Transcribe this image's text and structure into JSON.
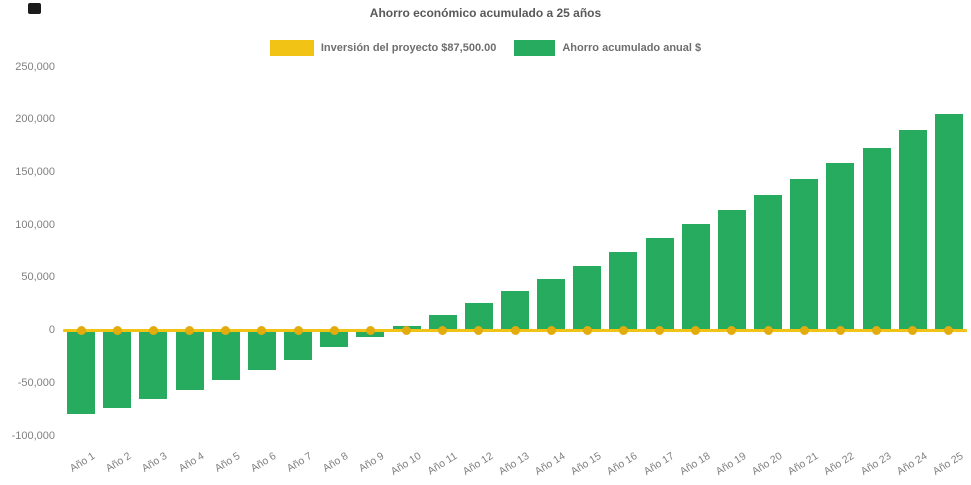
{
  "header": {
    "title": "Ahorro económico acumulado a 25 años"
  },
  "colors": {
    "investment_yellow": "#f0c314",
    "marker_gold": "#e2ab0e",
    "savings_green": "#27ab5f",
    "title_text": "#595959",
    "legend_text": "#6e6e6e",
    "axis_text": "#808080",
    "corner_mark": "#1b1b1b",
    "background": "#ffffff"
  },
  "legend": {
    "items": [
      {
        "label": "Inversión del proyecto $87,500.00",
        "swatch_color": "#f0c314"
      },
      {
        "label": "Ahorro acumulado anual $",
        "swatch_color": "#27ab5f"
      }
    ]
  },
  "chart_data": {
    "type": "bar",
    "title": "Ahorro económico acumulado a 25 años",
    "categories": [
      "Año 1",
      "Año 2",
      "Año 3",
      "Año 4",
      "Año 5",
      "Año 6",
      "Año 7",
      "Año 8",
      "Año 9",
      "Año 10",
      "Año 11",
      "Año 12",
      "Año 13",
      "Año 14",
      "Año 15",
      "Año 16",
      "Año 17",
      "Año 18",
      "Año 19",
      "Año 20",
      "Año 21",
      "Año 22",
      "Año 23",
      "Año 24",
      "Año 25"
    ],
    "series": [
      {
        "name": "Inversión del proyecto $87,500.00",
        "type": "line",
        "color": "#f0c314",
        "marker_color": "#e2ab0e",
        "values": [
          0,
          0,
          0,
          0,
          0,
          0,
          0,
          0,
          0,
          0,
          0,
          0,
          0,
          0,
          0,
          0,
          0,
          0,
          0,
          0,
          0,
          0,
          0,
          0,
          0
        ]
      },
      {
        "name": "Ahorro acumulado anual $",
        "type": "bar",
        "color": "#27ab5f",
        "values": [
          -79500,
          -73000,
          -65000,
          -56500,
          -47000,
          -37000,
          -28000,
          -16000,
          -6500,
          4000,
          15000,
          26500,
          37500,
          48500,
          61000,
          74500,
          87500,
          101000,
          114000,
          129000,
          144000,
          158500,
          173500,
          190000,
          205500
        ]
      }
    ],
    "xlabel": "",
    "ylabel": "",
    "ylim": [
      -100000,
      250000
    ],
    "yticks": {
      "values": [
        250000,
        200000,
        150000,
        100000,
        50000,
        0,
        -50000,
        -100000
      ],
      "labels": [
        "250,000",
        "200,000",
        "150,000",
        "100,000",
        "50,000",
        "0",
        "-50,000",
        "-100,000"
      ]
    },
    "grid": false,
    "legend_position": "top"
  }
}
